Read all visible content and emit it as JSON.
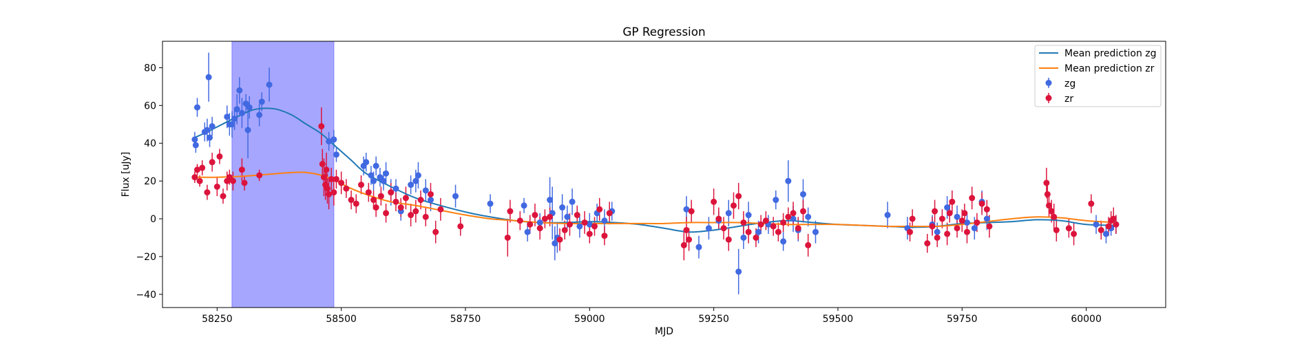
{
  "chart_data": {
    "type": "scatter",
    "title": "GP Regression",
    "xlabel": "MJD",
    "ylabel": "Flux [uJy]",
    "xlim": [
      58140,
      60160
    ],
    "ylim": [
      -47,
      94
    ],
    "x_ticks": [
      58250,
      58500,
      58750,
      59000,
      59250,
      59500,
      59750,
      60000
    ],
    "y_ticks": [
      -40,
      -20,
      0,
      20,
      40,
      60,
      80
    ],
    "x_tick_labels": [
      "58250",
      "58500",
      "58750",
      "59000",
      "59250",
      "59500",
      "59750",
      "60000"
    ],
    "y_tick_labels": [
      "−40",
      "−20",
      "0",
      "20",
      "40",
      "60",
      "80"
    ],
    "grid": false,
    "legend_position": "upper right",
    "shaded_region": {
      "x_start": 58280,
      "x_end": 58485,
      "color": "#a6a6ff"
    },
    "lines": [
      {
        "name": "Mean prediction zg",
        "color": "#1f77b4",
        "x": [
          58205,
          58230,
          58260,
          58290,
          58320,
          58345,
          58370,
          58400,
          58430,
          58460,
          58490,
          58520,
          58550,
          58600,
          58650,
          58700,
          58760,
          58800,
          58850,
          58900,
          58950,
          59000,
          59050,
          59100,
          59150,
          59200,
          59250,
          59300,
          59350,
          59400,
          59450,
          59500,
          59550,
          59600,
          59650,
          59700,
          59750,
          59800,
          59850,
          59900,
          59950,
          60000,
          60060
        ],
        "y": [
          43,
          46,
          50,
          54,
          57.5,
          58.5,
          58,
          55,
          50,
          45,
          38,
          31,
          24,
          17,
          11,
          7,
          3,
          1,
          -1,
          -2,
          -2,
          -1.5,
          -2,
          -3,
          -5,
          -7,
          -6,
          -4,
          -2,
          -1,
          -2,
          -3,
          -3.5,
          -4,
          -4.5,
          -4,
          -2.5,
          -2,
          -1.5,
          -0.5,
          -1,
          -3,
          -3.5
        ]
      },
      {
        "name": "Mean prediction zr",
        "color": "#ff7f0e",
        "x": [
          58205,
          58250,
          58300,
          58350,
          58400,
          58430,
          58460,
          58490,
          58520,
          58560,
          58600,
          58650,
          58700,
          58750,
          58800,
          58850,
          58900,
          58950,
          59000,
          59050,
          59100,
          59150,
          59200,
          59250,
          59300,
          59350,
          59400,
          59450,
          59500,
          59550,
          59600,
          59650,
          59700,
          59750,
          59800,
          59850,
          59900,
          59950,
          60000,
          60060
        ],
        "y": [
          22,
          22,
          22.5,
          23.5,
          24.5,
          24.5,
          23,
          20,
          16,
          12,
          9,
          7,
          4.5,
          2,
          0,
          -1,
          -2,
          -2.5,
          -2.5,
          -2.5,
          -2.5,
          -2.5,
          -2,
          -2,
          -2,
          -2.5,
          -3,
          -3,
          -3,
          -3.5,
          -4,
          -4,
          -4,
          -3,
          -1.5,
          0,
          1,
          0.5,
          -1,
          -2
        ]
      }
    ],
    "series": [
      {
        "name": "zg",
        "color": "#4169e1",
        "points": [
          [
            58205,
            42,
            4
          ],
          [
            58207,
            39,
            4
          ],
          [
            58210,
            59,
            5
          ],
          [
            58225,
            46,
            5
          ],
          [
            58230,
            47,
            6
          ],
          [
            58233,
            75,
            13
          ],
          [
            58235,
            43,
            5
          ],
          [
            58240,
            49,
            5
          ],
          [
            58270,
            54,
            6
          ],
          [
            58275,
            50,
            6
          ],
          [
            58280,
            50,
            7
          ],
          [
            58285,
            53,
            6
          ],
          [
            58290,
            58,
            8
          ],
          [
            58295,
            68,
            7
          ],
          [
            58300,
            56,
            8
          ],
          [
            58308,
            61,
            5
          ],
          [
            58312,
            47,
            15
          ],
          [
            58315,
            59,
            6
          ],
          [
            58335,
            55,
            6
          ],
          [
            58340,
            62,
            5
          ],
          [
            58355,
            71,
            9
          ],
          [
            58475,
            41,
            5
          ],
          [
            58485,
            42,
            5
          ],
          [
            58490,
            34,
            4
          ],
          [
            58545,
            28,
            5
          ],
          [
            58550,
            30,
            5
          ],
          [
            58560,
            23,
            5
          ],
          [
            58565,
            20,
            5
          ],
          [
            58570,
            28,
            5
          ],
          [
            58578,
            22,
            5
          ],
          [
            58585,
            20,
            5
          ],
          [
            58590,
            24,
            6
          ],
          [
            58600,
            14,
            7
          ],
          [
            58610,
            16,
            5
          ],
          [
            58620,
            4,
            5
          ],
          [
            58640,
            18,
            5
          ],
          [
            58650,
            20,
            6
          ],
          [
            58655,
            23,
            7
          ],
          [
            58670,
            15,
            6
          ],
          [
            58680,
            10,
            6
          ],
          [
            58730,
            12,
            6
          ],
          [
            58800,
            8,
            5
          ],
          [
            58868,
            7,
            4
          ],
          [
            58875,
            -7,
            5
          ],
          [
            58900,
            -2,
            5
          ],
          [
            58920,
            10,
            12
          ],
          [
            58925,
            3,
            14
          ],
          [
            58930,
            -13,
            9
          ],
          [
            58935,
            -10,
            8
          ],
          [
            58945,
            6,
            7
          ],
          [
            58955,
            1,
            6
          ],
          [
            58965,
            9,
            7
          ],
          [
            58980,
            -4,
            6
          ],
          [
            59000,
            -3,
            6
          ],
          [
            59015,
            3,
            5
          ],
          [
            59030,
            -1,
            6
          ],
          [
            59045,
            4,
            5
          ],
          [
            59195,
            5,
            7
          ],
          [
            59220,
            -15,
            6
          ],
          [
            59240,
            -5,
            6
          ],
          [
            59260,
            -1,
            5
          ],
          [
            59280,
            3,
            7
          ],
          [
            59300,
            -28,
            12
          ],
          [
            59310,
            -10,
            6
          ],
          [
            59320,
            2,
            7
          ],
          [
            59340,
            -7,
            6
          ],
          [
            59360,
            -3,
            5
          ],
          [
            59375,
            10,
            5
          ],
          [
            59390,
            -12,
            5
          ],
          [
            59400,
            20,
            11
          ],
          [
            59410,
            0,
            7
          ],
          [
            59420,
            -6,
            6
          ],
          [
            59430,
            13,
            8
          ],
          [
            59440,
            1,
            5
          ],
          [
            59455,
            -7,
            6
          ],
          [
            59600,
            2,
            7
          ],
          [
            59640,
            -5,
            6
          ],
          [
            59690,
            -3,
            5
          ],
          [
            59700,
            -7,
            5
          ],
          [
            59720,
            6,
            6
          ],
          [
            59740,
            1,
            6
          ],
          [
            59760,
            -2,
            5
          ],
          [
            59775,
            -5,
            6
          ],
          [
            59790,
            9,
            6
          ],
          [
            59800,
            0,
            6
          ],
          [
            60020,
            -3,
            5
          ],
          [
            60040,
            -8,
            5
          ],
          [
            60050,
            -5,
            4
          ],
          [
            60060,
            -3,
            5
          ]
        ]
      },
      {
        "name": "zr",
        "color": "#dc143c",
        "points": [
          [
            58205,
            22,
            3
          ],
          [
            58210,
            26,
            3
          ],
          [
            58215,
            20,
            3
          ],
          [
            58220,
            27,
            4
          ],
          [
            58230,
            14,
            4
          ],
          [
            58240,
            30,
            5
          ],
          [
            58250,
            17,
            5
          ],
          [
            58255,
            33,
            4
          ],
          [
            58262,
            12,
            4
          ],
          [
            58270,
            20,
            5
          ],
          [
            58275,
            22,
            4
          ],
          [
            58282,
            20,
            5
          ],
          [
            58300,
            26,
            6
          ],
          [
            58305,
            19,
            4
          ],
          [
            58335,
            23,
            3
          ],
          [
            58460,
            49,
            10
          ],
          [
            58462,
            29,
            8
          ],
          [
            58465,
            22,
            10
          ],
          [
            58468,
            18,
            8
          ],
          [
            58470,
            26,
            9
          ],
          [
            58472,
            16,
            8
          ],
          [
            58475,
            13,
            8
          ],
          [
            58480,
            21,
            6
          ],
          [
            58485,
            14,
            7
          ],
          [
            58490,
            21,
            5
          ],
          [
            58500,
            19,
            6
          ],
          [
            58510,
            16,
            5
          ],
          [
            58520,
            10,
            5
          ],
          [
            58530,
            8,
            5
          ],
          [
            58540,
            18,
            5
          ],
          [
            58555,
            14,
            5
          ],
          [
            58565,
            10,
            5
          ],
          [
            58570,
            6,
            5
          ],
          [
            58580,
            12,
            5
          ],
          [
            58590,
            3,
            5
          ],
          [
            58600,
            14,
            5
          ],
          [
            58610,
            9,
            5
          ],
          [
            58620,
            6,
            5
          ],
          [
            58630,
            11,
            6
          ],
          [
            58640,
            2,
            6
          ],
          [
            58650,
            4,
            6
          ],
          [
            58660,
            10,
            5
          ],
          [
            58670,
            1,
            5
          ],
          [
            58680,
            13,
            6
          ],
          [
            58690,
            -7,
            6
          ],
          [
            58700,
            5,
            6
          ],
          [
            58740,
            -4,
            5
          ],
          [
            58835,
            -10,
            10
          ],
          [
            58840,
            4,
            6
          ],
          [
            58860,
            -1,
            5
          ],
          [
            58880,
            -3,
            5
          ],
          [
            58890,
            2,
            6
          ],
          [
            58900,
            -5,
            6
          ],
          [
            58910,
            0,
            5
          ],
          [
            58920,
            1,
            5
          ],
          [
            58940,
            -11,
            6
          ],
          [
            58950,
            -6,
            5
          ],
          [
            58960,
            -3,
            6
          ],
          [
            58975,
            2,
            5
          ],
          [
            58990,
            -2,
            6
          ],
          [
            59000,
            -8,
            5
          ],
          [
            59010,
            -4,
            5
          ],
          [
            59020,
            5,
            6
          ],
          [
            59030,
            -9,
            5
          ],
          [
            59040,
            3,
            6
          ],
          [
            59190,
            -14,
            8
          ],
          [
            59195,
            -6,
            7
          ],
          [
            59200,
            -11,
            6
          ],
          [
            59205,
            4,
            6
          ],
          [
            59250,
            9,
            7
          ],
          [
            59260,
            0,
            6
          ],
          [
            59270,
            -5,
            6
          ],
          [
            59280,
            -11,
            6
          ],
          [
            59290,
            7,
            7
          ],
          [
            59300,
            12,
            7
          ],
          [
            59310,
            -2,
            6
          ],
          [
            59320,
            -7,
            6
          ],
          [
            59335,
            -10,
            5
          ],
          [
            59345,
            -3,
            5
          ],
          [
            59355,
            -1,
            5
          ],
          [
            59370,
            -4,
            5
          ],
          [
            59380,
            -7,
            5
          ],
          [
            59390,
            -2,
            5
          ],
          [
            59400,
            1,
            5
          ],
          [
            59410,
            3,
            6
          ],
          [
            59420,
            -5,
            6
          ],
          [
            59430,
            4,
            6
          ],
          [
            59440,
            -14,
            6
          ],
          [
            59645,
            -7,
            5
          ],
          [
            59650,
            0,
            5
          ],
          [
            59680,
            -13,
            5
          ],
          [
            59690,
            -4,
            5
          ],
          [
            59695,
            4,
            6
          ],
          [
            59700,
            -10,
            5
          ],
          [
            59710,
            0,
            5
          ],
          [
            59720,
            -8,
            6
          ],
          [
            59725,
            3,
            5
          ],
          [
            59730,
            9,
            6
          ],
          [
            59740,
            -5,
            5
          ],
          [
            59750,
            -1,
            6
          ],
          [
            59755,
            3,
            5
          ],
          [
            59760,
            -7,
            6
          ],
          [
            59770,
            11,
            6
          ],
          [
            59780,
            -2,
            5
          ],
          [
            59790,
            8,
            6
          ],
          [
            59800,
            5,
            5
          ],
          [
            59805,
            -4,
            6
          ],
          [
            59920,
            19,
            8
          ],
          [
            59922,
            13,
            7
          ],
          [
            59925,
            7,
            6
          ],
          [
            59930,
            4,
            6
          ],
          [
            59935,
            1,
            7
          ],
          [
            59940,
            -6,
            6
          ],
          [
            59965,
            -5,
            5
          ],
          [
            59975,
            -8,
            6
          ],
          [
            60010,
            8,
            5
          ],
          [
            60030,
            -6,
            5
          ],
          [
            60045,
            -4,
            5
          ],
          [
            60050,
            -1,
            5
          ],
          [
            60055,
            0,
            6
          ],
          [
            60060,
            -3,
            5
          ]
        ]
      }
    ]
  }
}
